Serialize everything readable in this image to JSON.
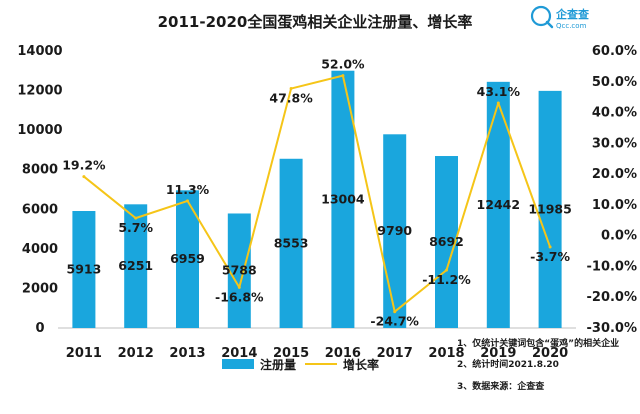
{
  "header": {
    "title": "2011-2020全国蛋鸡相关企业注册量、增长率",
    "logo_name": "企查查",
    "logo_domain": "Qcc.com"
  },
  "chart_data": {
    "type": "bar",
    "categories": [
      "2011",
      "2012",
      "2013",
      "2014",
      "2015",
      "2016",
      "2017",
      "2018",
      "2019",
      "2020"
    ],
    "series": [
      {
        "name": "注册量",
        "type": "bar",
        "axis": "left",
        "color": "#1aa6dd",
        "values": [
          5913,
          6251,
          6959,
          5788,
          8553,
          13004,
          9790,
          8692,
          12442,
          11985
        ],
        "labels": [
          "5913",
          "6251",
          "6959",
          "5788",
          "8553",
          "13004",
          "9790",
          "8692",
          "12442",
          "11985"
        ]
      },
      {
        "name": "增长率",
        "type": "line",
        "axis": "right",
        "color": "#f5c518",
        "values": [
          19.2,
          5.7,
          11.3,
          -16.8,
          47.8,
          52.0,
          -24.7,
          -11.2,
          43.1,
          -3.7
        ],
        "labels": [
          "19.2%",
          "5.7%",
          "11.3%",
          "-16.8%",
          "47.8%",
          "52.0%",
          "-24.7%",
          "-11.2%",
          "43.1%",
          "-3.7%"
        ]
      }
    ],
    "y_left": {
      "range": [
        0,
        14000
      ],
      "ticks": [
        0,
        2000,
        4000,
        6000,
        8000,
        10000,
        12000,
        14000
      ],
      "tick_labels": [
        "0",
        "2000",
        "4000",
        "6000",
        "8000",
        "10000",
        "12000",
        "14000"
      ]
    },
    "y_right": {
      "range": [
        -30,
        60
      ],
      "ticks": [
        -30,
        -20,
        -10,
        0,
        10,
        20,
        30,
        40,
        50,
        60
      ],
      "tick_labels": [
        "-30.0%",
        "-20.0%",
        "-10.0%",
        "0.0%",
        "10.0%",
        "20.0%",
        "30.0%",
        "40.0%",
        "50.0%",
        "60.0%"
      ]
    },
    "grid": false,
    "legend_placement": "bottom"
  },
  "notes": [
    "1、仅统计关键词包含“蛋鸡”的相关企业",
    "2、统计时间2021.8.20",
    "3、数据来源：企查查"
  ]
}
